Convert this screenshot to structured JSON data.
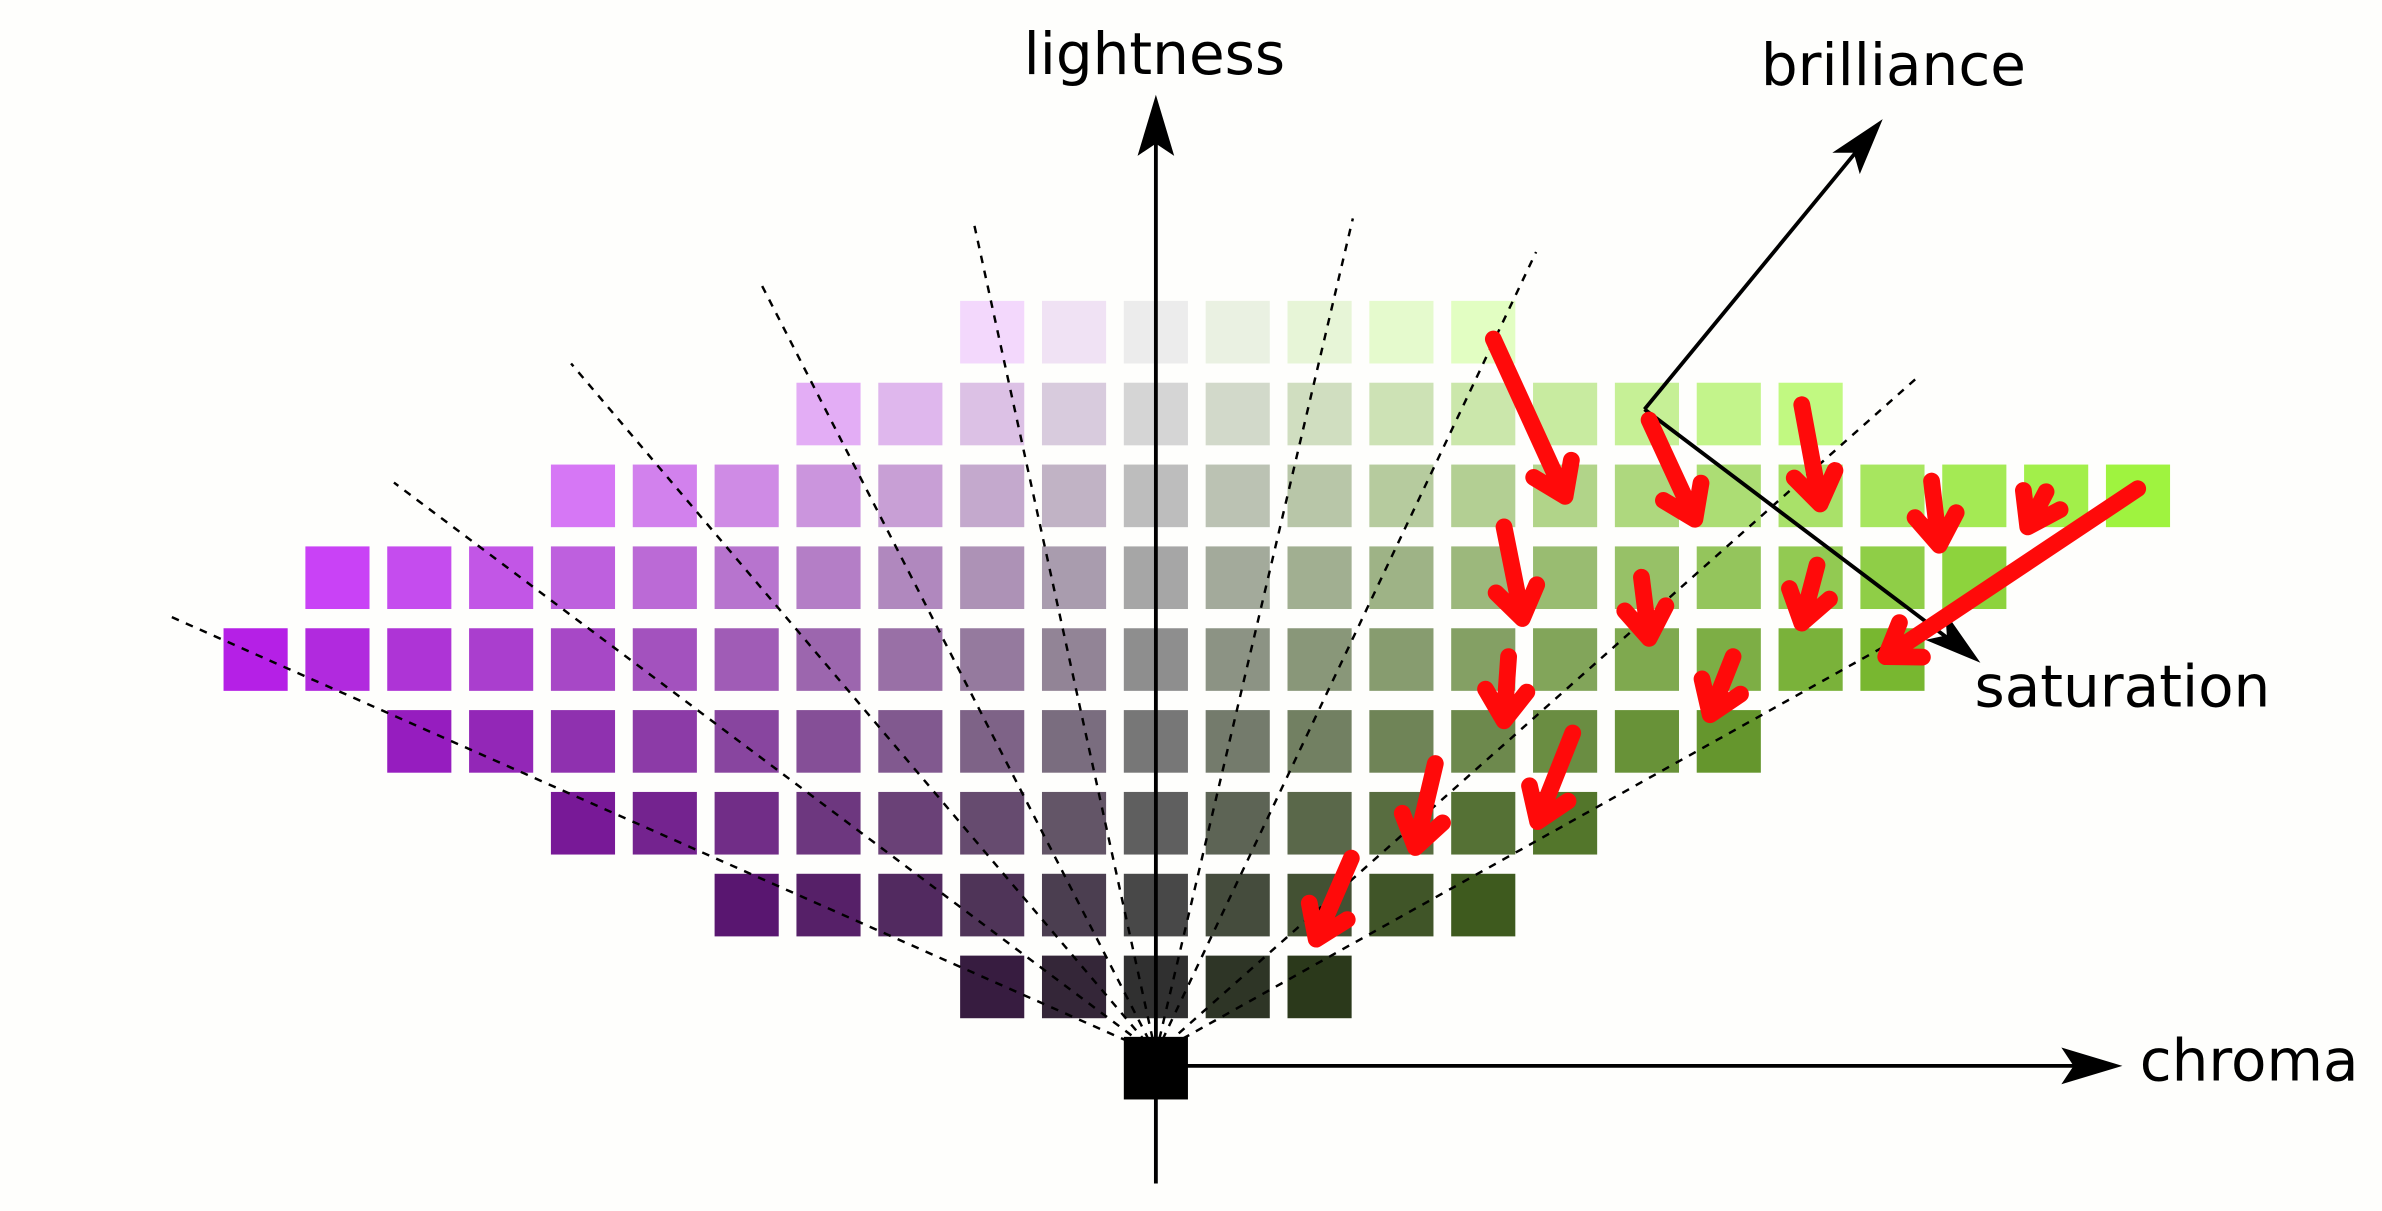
{
  "axes": {
    "lightness": "lightness",
    "brilliance": "brilliance",
    "saturation": "saturation",
    "chroma": "chroma"
  }
}
